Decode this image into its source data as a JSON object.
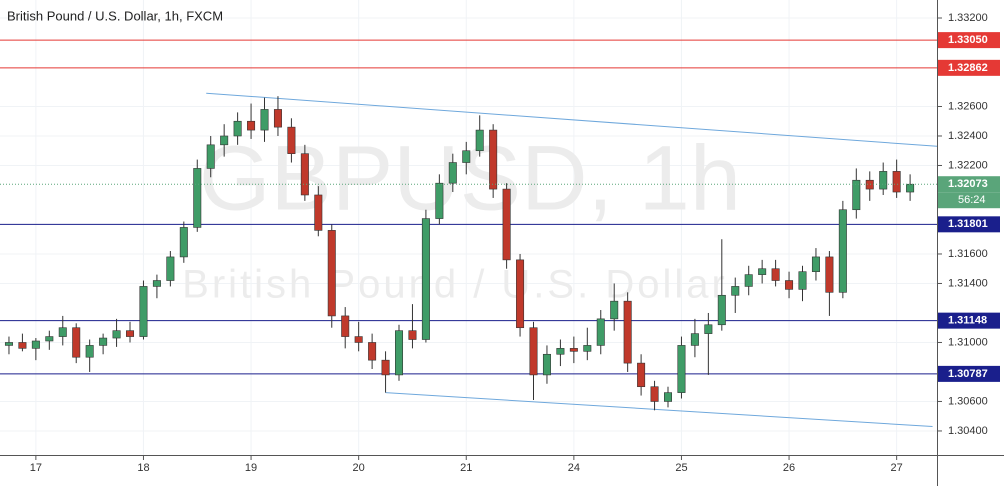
{
  "chart_data": {
    "type": "candlestick",
    "title": "British Pound / U.S. Dollar, 1h, FXCM",
    "watermark": [
      "GBPUSD, 1h",
      "British Pound / U.S. Dollar"
    ],
    "up_color": "#3f9c67",
    "down_color": "#c0392b",
    "grid": true,
    "xlim": [
      -8,
      201
    ],
    "ylim": [
      1.30237,
      1.33322
    ],
    "xticks": [
      {
        "value": 0,
        "label": "17"
      },
      {
        "value": 24,
        "label": "18"
      },
      {
        "value": 48,
        "label": "19"
      },
      {
        "value": 72,
        "label": "20"
      },
      {
        "value": 96,
        "label": "21"
      },
      {
        "value": 120,
        "label": "24"
      },
      {
        "value": 144,
        "label": "25"
      },
      {
        "value": 168,
        "label": "26"
      },
      {
        "value": 192,
        "label": "27"
      }
    ],
    "yticks": [
      {
        "value": 1.332,
        "label": "1.33200"
      },
      {
        "value": 1.326,
        "label": "1.32600"
      },
      {
        "value": 1.324,
        "label": "1.32400"
      },
      {
        "value": 1.322,
        "label": "1.32200"
      },
      {
        "value": 1.316,
        "label": "1.31600"
      },
      {
        "value": 1.314,
        "label": "1.31400"
      },
      {
        "value": 1.31,
        "label": "1.31000"
      },
      {
        "value": 1.306,
        "label": "1.30600"
      },
      {
        "value": 1.304,
        "label": "1.30400"
      }
    ],
    "x": [
      -6,
      -3,
      0,
      3,
      6,
      9,
      12,
      15,
      18,
      21,
      24,
      27,
      30,
      33,
      36,
      39,
      42,
      45,
      48,
      51,
      54,
      57,
      60,
      63,
      66,
      69,
      72,
      75,
      78,
      81,
      84,
      87,
      90,
      93,
      96,
      99,
      102,
      105,
      108,
      111,
      114,
      117,
      120,
      123,
      126,
      129,
      132,
      135,
      138,
      141,
      144,
      147,
      150,
      153,
      156,
      159,
      162,
      165,
      168,
      171,
      174,
      177,
      180,
      183,
      186,
      189,
      192,
      195
    ],
    "open": [
      1.3098,
      1.31,
      1.3096,
      1.3101,
      1.3104,
      1.311,
      1.309,
      1.3098,
      1.3103,
      1.3108,
      1.3104,
      1.3138,
      1.3142,
      1.3158,
      1.3178,
      1.3218,
      1.3234,
      1.324,
      1.325,
      1.3244,
      1.3258,
      1.3246,
      1.3228,
      1.32,
      1.3176,
      1.3118,
      1.3104,
      1.31,
      1.3088,
      1.3078,
      1.3108,
      1.3102,
      1.3184,
      1.3208,
      1.3222,
      1.323,
      1.3244,
      1.3204,
      1.3156,
      1.311,
      1.3078,
      1.3092,
      1.3096,
      1.3094,
      1.3098,
      1.3116,
      1.3128,
      1.3086,
      1.307,
      1.306,
      1.3066,
      1.3098,
      1.3106,
      1.3112,
      1.3132,
      1.3138,
      1.3146,
      1.315,
      1.3142,
      1.3136,
      1.3148,
      1.3158,
      1.3134,
      1.319,
      1.321,
      1.3204,
      1.3216,
      1.3202
    ],
    "high": [
      1.3104,
      1.3106,
      1.3103,
      1.3108,
      1.3118,
      1.3113,
      1.3102,
      1.3106,
      1.3116,
      1.3114,
      1.3142,
      1.3146,
      1.3162,
      1.3182,
      1.3224,
      1.324,
      1.3248,
      1.3256,
      1.3262,
      1.3266,
      1.3267,
      1.3252,
      1.3234,
      1.3206,
      1.318,
      1.3124,
      1.3114,
      1.3106,
      1.3094,
      1.3112,
      1.3126,
      1.319,
      1.3214,
      1.3228,
      1.3236,
      1.3254,
      1.3248,
      1.3208,
      1.316,
      1.3114,
      1.3098,
      1.3102,
      1.3104,
      1.311,
      1.3122,
      1.314,
      1.3134,
      1.3092,
      1.3074,
      1.307,
      1.3104,
      1.3116,
      1.312,
      1.317,
      1.3144,
      1.3152,
      1.3156,
      1.3156,
      1.3148,
      1.3152,
      1.3164,
      1.3162,
      1.3196,
      1.3218,
      1.3216,
      1.3222,
      1.3224,
      1.3214
    ],
    "low": [
      1.3092,
      1.3094,
      1.3088,
      1.3095,
      1.3098,
      1.3086,
      1.308,
      1.3092,
      1.3097,
      1.31,
      1.3102,
      1.313,
      1.3138,
      1.3154,
      1.3175,
      1.3212,
      1.3226,
      1.3234,
      1.3238,
      1.3236,
      1.324,
      1.3222,
      1.3196,
      1.3172,
      1.311,
      1.3096,
      1.3094,
      1.3082,
      1.3066,
      1.3074,
      1.3096,
      1.31,
      1.318,
      1.3202,
      1.3214,
      1.3226,
      1.3198,
      1.315,
      1.3104,
      1.3061,
      1.3072,
      1.3084,
      1.3086,
      1.3088,
      1.3092,
      1.3108,
      1.308,
      1.3064,
      1.3054,
      1.3056,
      1.3062,
      1.309,
      1.3078,
      1.3108,
      1.312,
      1.3132,
      1.314,
      1.3138,
      1.313,
      1.3128,
      1.3142,
      1.3118,
      1.313,
      1.3184,
      1.3196,
      1.32,
      1.3198,
      1.3196
    ],
    "close": [
      1.31,
      1.3096,
      1.3101,
      1.3104,
      1.311,
      1.309,
      1.3098,
      1.3103,
      1.3108,
      1.3104,
      1.3138,
      1.3142,
      1.3158,
      1.3178,
      1.3218,
      1.3234,
      1.324,
      1.325,
      1.3244,
      1.3258,
      1.3246,
      1.3228,
      1.32,
      1.3176,
      1.3118,
      1.3104,
      1.31,
      1.3088,
      1.3078,
      1.3108,
      1.3102,
      1.3184,
      1.3208,
      1.3222,
      1.323,
      1.3244,
      1.3204,
      1.3156,
      1.311,
      1.3078,
      1.3092,
      1.3096,
      1.3094,
      1.3098,
      1.3116,
      1.3128,
      1.3086,
      1.307,
      1.306,
      1.3066,
      1.3098,
      1.3106,
      1.3112,
      1.3132,
      1.3138,
      1.3146,
      1.315,
      1.3142,
      1.3136,
      1.3148,
      1.3158,
      1.3134,
      1.319,
      1.321,
      1.3204,
      1.3216,
      1.3202,
      1.32073
    ],
    "levels": [
      {
        "value": 1.3305,
        "label": "1.33050",
        "color": "#e53935"
      },
      {
        "value": 1.32862,
        "label": "1.32862",
        "color": "#e53935"
      },
      {
        "value": 1.31801,
        "label": "1.31801",
        "color": "#1a1f8c"
      },
      {
        "value": 1.31148,
        "label": "1.31148",
        "color": "#1a1f8c"
      },
      {
        "value": 1.30787,
        "label": "1.30787",
        "color": "#1a1f8c"
      }
    ],
    "last_price": {
      "value": 1.32073,
      "label": "1.32073",
      "color": "#5aa57a"
    },
    "countdown": "56:24",
    "trendline_color": "#6fa8dc",
    "trendlines": [
      {
        "x": [
          38,
          201
        ],
        "y": [
          1.3269,
          1.3233
        ]
      },
      {
        "x": [
          78,
          200
        ],
        "y": [
          1.3066,
          1.3043
        ]
      }
    ]
  }
}
